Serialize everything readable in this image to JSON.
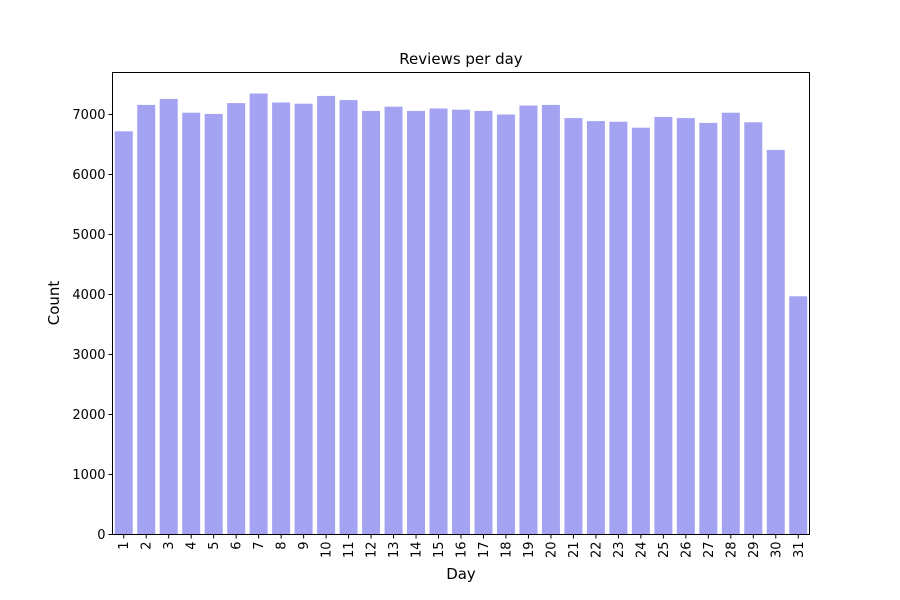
{
  "chart_data": {
    "type": "bar",
    "title": "Reviews per day",
    "xlabel": "Day",
    "ylabel": "Count",
    "categories": [
      "1",
      "2",
      "3",
      "4",
      "5",
      "6",
      "7",
      "8",
      "9",
      "10",
      "11",
      "12",
      "13",
      "14",
      "15",
      "16",
      "17",
      "18",
      "19",
      "20",
      "21",
      "22",
      "23",
      "24",
      "25",
      "26",
      "27",
      "28",
      "29",
      "30",
      "31"
    ],
    "values": [
      6720,
      7160,
      7260,
      7030,
      7010,
      7190,
      7350,
      7200,
      7180,
      7310,
      7240,
      7060,
      7130,
      7060,
      7100,
      7080,
      7060,
      7000,
      7150,
      7160,
      6940,
      6890,
      6880,
      6780,
      6960,
      6940,
      6860,
      7030,
      6870,
      6410,
      3970
    ],
    "yticks": [
      0,
      1000,
      2000,
      3000,
      4000,
      5000,
      6000,
      7000
    ],
    "ylim": [
      0,
      7700
    ],
    "bar_color": "#a3a3f2",
    "grid": false,
    "x_tick_rotation": "vertical"
  }
}
